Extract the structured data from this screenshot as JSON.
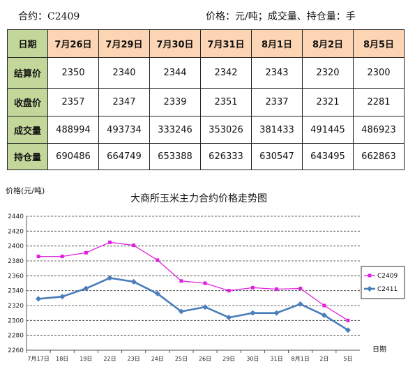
{
  "header": {
    "contract": "合约：C2409",
    "units": "价格：元/吨；成交量、持仓量：手"
  },
  "table": {
    "corner": "日期",
    "dates": [
      "7月26日",
      "7月29日",
      "7月30日",
      "7月31日",
      "8月1日",
      "8月2日",
      "8月5日"
    ],
    "rows": [
      {
        "label": "结算价",
        "values": [
          "2350",
          "2340",
          "2344",
          "2342",
          "2343",
          "2320",
          "2300"
        ]
      },
      {
        "label": "收盘价",
        "values": [
          "2357",
          "2347",
          "2339",
          "2351",
          "2337",
          "2321",
          "2281"
        ]
      },
      {
        "label": "成交量",
        "values": [
          "488994",
          "493734",
          "333246",
          "353026",
          "381433",
          "491445",
          "486923"
        ]
      },
      {
        "label": "持仓量",
        "values": [
          "690486",
          "664749",
          "653388",
          "626333",
          "630547",
          "643495",
          "662863"
        ]
      }
    ]
  },
  "chart_data": {
    "type": "line",
    "title": "大商所玉米主力合约价格走势图",
    "ylabel": "价格(元/吨)",
    "xlabel": "日期",
    "ylim": [
      2260,
      2440
    ],
    "yticks": [
      2260,
      2280,
      2300,
      2320,
      2340,
      2360,
      2380,
      2400,
      2420,
      2440
    ],
    "grid": true,
    "legend_position": "right",
    "categories": [
      "7月17日",
      "18日",
      "19日",
      "22日",
      "23日",
      "24日",
      "25日",
      "26日",
      "29日",
      "30日",
      "31日",
      "8月1日",
      "2日",
      "5日"
    ],
    "series": [
      {
        "name": "C2409",
        "color": "#e020e0",
        "marker": "square",
        "values": [
          2386,
          2386,
          2391,
          2405,
          2401,
          2381,
          2353,
          2350,
          2340,
          2344,
          2342,
          2343,
          2320,
          2300
        ]
      },
      {
        "name": "C2411",
        "color": "#4a7ebb",
        "marker": "diamond",
        "values": [
          2329,
          2332,
          2343,
          2357,
          2352,
          2336,
          2312,
          2318,
          2304,
          2310,
          2310,
          2322,
          2307,
          2287
        ]
      }
    ]
  }
}
